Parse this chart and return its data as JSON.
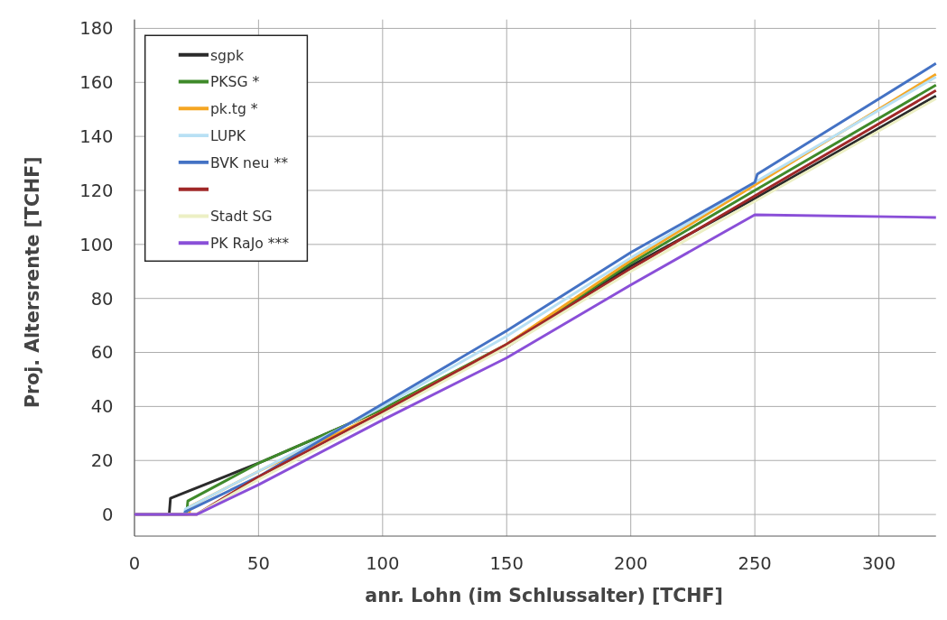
{
  "chart_data": {
    "type": "line",
    "xlabel": "anr. Lohn (im Schlussalter) [TCHF]",
    "ylabel": "Proj. Altersrente [TCHF]",
    "xlim": [
      0,
      323
    ],
    "ylim": [
      -8,
      180
    ],
    "xticks": [
      0,
      50,
      100,
      150,
      200,
      250,
      300
    ],
    "yticks": [
      0,
      20,
      40,
      60,
      80,
      100,
      120,
      140,
      160,
      180
    ],
    "grid": true,
    "legend": "top left",
    "line_style": "solid",
    "marker": "none",
    "series": [
      {
        "name": "sgpk",
        "color": "#2b2b2b",
        "x": [
          0,
          14,
          14.5,
          50,
          100,
          150,
          200,
          250,
          323
        ],
        "values": [
          0,
          0,
          6,
          19,
          39,
          62,
          92,
          117,
          155
        ]
      },
      {
        "name": "PKSG *",
        "color": "#3f8a2a",
        "x": [
          0,
          21,
          21.5,
          50,
          100,
          150,
          200,
          250,
          323
        ],
        "values": [
          0,
          0,
          5,
          19,
          39,
          63,
          93,
          120,
          159
        ]
      },
      {
        "name": "pk.tg *",
        "color": "#f5a623",
        "x": [
          0,
          22,
          22.5,
          50,
          100,
          150,
          200,
          250,
          323
        ],
        "values": [
          0,
          0,
          3,
          16,
          38,
          63,
          94,
          122,
          163
        ]
      },
      {
        "name": "LUPK",
        "color": "#b8e0f4",
        "x": [
          0,
          20,
          20.5,
          50,
          100,
          150,
          200,
          250,
          323
        ],
        "values": [
          0,
          0,
          2,
          16,
          40,
          66,
          95,
          123,
          162
        ]
      },
      {
        "name": "BVK neu **",
        "color": "#4472c4",
        "x": [
          0,
          20,
          20.5,
          50,
          100,
          150,
          200,
          250,
          251,
          323
        ],
        "values": [
          0,
          0,
          1,
          14,
          41,
          68,
          97,
          123,
          126,
          167
        ]
      },
      {
        "name": null,
        "color": "#a02828",
        "x": [
          0,
          25,
          50,
          100,
          150,
          200,
          250,
          323
        ],
        "values": [
          0,
          0,
          14,
          38,
          63,
          91,
          118,
          157
        ]
      },
      {
        "name": "Stadt SG",
        "color": "#ecefc4",
        "x": [
          0,
          25,
          50,
          100,
          150,
          200,
          250,
          323
        ],
        "values": [
          0,
          0,
          13,
          37,
          62,
          90,
          116,
          154
        ]
      },
      {
        "name": "PK RaJo ***",
        "color": "#8a4fd8",
        "x": [
          0,
          25,
          50,
          100,
          150,
          200,
          250,
          323
        ],
        "values": [
          0,
          0,
          11,
          35,
          58,
          85,
          111,
          110
        ]
      }
    ]
  }
}
